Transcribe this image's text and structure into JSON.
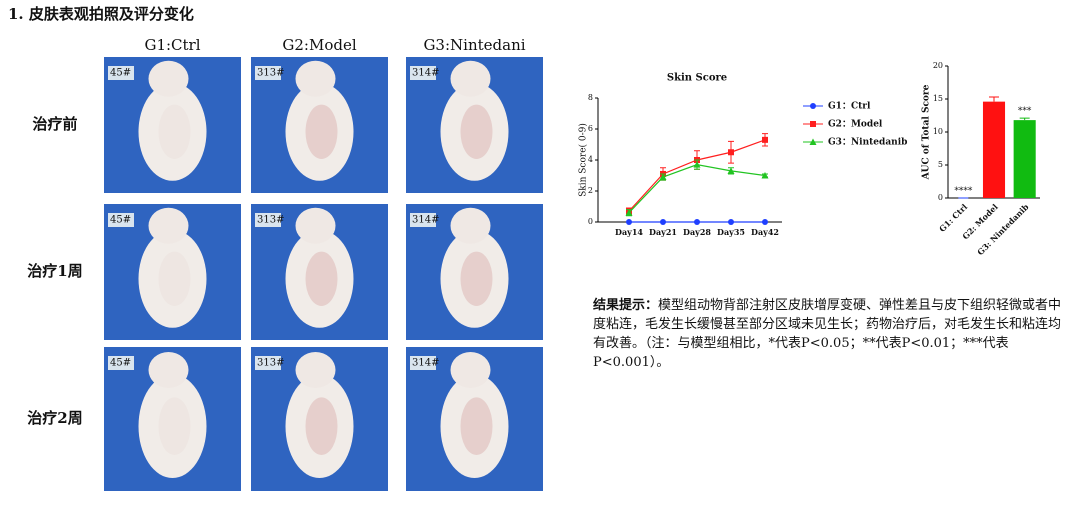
{
  "header": {
    "title": "1. 皮肤表观拍照及评分变化"
  },
  "photos": {
    "columns": [
      "G1:Ctrl",
      "G2:Model",
      "G3:Nintedani"
    ],
    "rows": [
      {
        "label": "治疗前",
        "tags": [
          "45#",
          "313#",
          "314#"
        ]
      },
      {
        "label": "治疗1周",
        "tags": [
          "45#",
          "313#",
          "314#"
        ]
      },
      {
        "label": "治疗2周",
        "tags": [
          "45#",
          "313#",
          "314#"
        ]
      }
    ]
  },
  "chart_data": [
    {
      "type": "line",
      "title": "Skin Score",
      "y_label": "Skin Score( 0-9)",
      "categories": [
        "Day14",
        "Day21",
        "Day28",
        "Day35",
        "Day42"
      ],
      "ylim": [
        0,
        8
      ],
      "yticks": [
        0,
        2,
        4,
        6,
        8
      ],
      "legend": "right",
      "series": [
        {
          "name": "G1：Ctrl",
          "color": "#1f3fff",
          "marker": "circle",
          "values": [
            0,
            0,
            0,
            0,
            0
          ]
        },
        {
          "name": "G2：Model",
          "color": "#ff1f1f",
          "marker": "square",
          "values": [
            0.7,
            3.1,
            4.0,
            4.5,
            5.3
          ],
          "errors": [
            0.2,
            0.4,
            0.6,
            0.7,
            0.4
          ]
        },
        {
          "name": "G3：Nintedanib",
          "color": "#22c422",
          "marker": "triangle",
          "values": [
            0.6,
            2.9,
            3.7,
            3.3,
            3.0
          ],
          "errors": [
            0.2,
            0.2,
            0.3,
            0.2,
            0.1
          ]
        }
      ]
    },
    {
      "type": "bar",
      "y_label": "AUC of Total Score",
      "categories": [
        "G1: Ctrl",
        "G2: Model",
        "G3: Nintedanib"
      ],
      "values": [
        0,
        14.6,
        11.8
      ],
      "errors": [
        0,
        0.7,
        0.3
      ],
      "colors": [
        "#1f3fff",
        "#ff1111",
        "#11bb11"
      ],
      "significance": [
        "****",
        null,
        "***"
      ],
      "ylim": [
        0,
        20
      ],
      "yticks": [
        0,
        5,
        10,
        15,
        20
      ]
    }
  ],
  "conclusion": {
    "label": "结果提示：",
    "text": "模型组动物背部注射区皮肤增厚变硬、弹性差且与皮下组织轻微或者中度粘连，毛发生长缓慢甚至部分区域未见生长；药物治疗后，对毛发生长和粘连均有改善。（注：与模型组相比，*代表P<0.05；**代表P<0.01；***代表P<0.001）。"
  }
}
